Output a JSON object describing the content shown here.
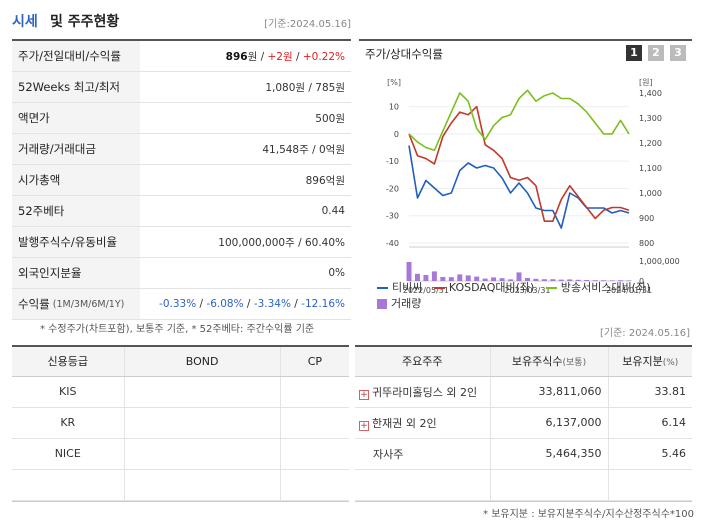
{
  "header": {
    "title_a": "시세",
    "title_b": "및 주주현황",
    "date": "[기준:2024.05.16]"
  },
  "market": {
    "rows": [
      {
        "label": "주가/전일대비/수익률"
      },
      {
        "label": "52Weeks 최고/최저",
        "value": "1,080원 / 785원"
      },
      {
        "label": "액면가",
        "value": "500원"
      },
      {
        "label": "거래량/거래대금",
        "value": "41,548주 / 0억원"
      },
      {
        "label": "시가총액",
        "value": "896억원"
      },
      {
        "label": "52주베타",
        "value": "0.44"
      },
      {
        "label": "발행주식수/유동비율",
        "value": "100,000,000주 / 60.40%"
      },
      {
        "label": "외국인지분율",
        "value": "0%"
      },
      {
        "label": "수익률",
        "sub": "(1M/3M/6M/1Y)"
      }
    ],
    "price": "896",
    "price_unit": "원 /",
    "change": "+2원",
    "sep": "/",
    "change_pct": "+0.22%",
    "returns": [
      "-0.33%",
      "-6.08%",
      "-3.34%",
      "-12.16%"
    ]
  },
  "note": "* 수정주가(차트포함), 보통주 기준, * 52주베타: 주간수익률 기준",
  "date2": "[기준: 2024.05.16]",
  "chart_panel": {
    "title": "주가/상대수익률",
    "tabs": [
      "1",
      "2",
      "3"
    ],
    "legend": [
      {
        "label": "티비씨",
        "color": "#1f5fbf"
      },
      {
        "label": "KOSDAQ대비(좌)",
        "color": "#c0392b"
      },
      {
        "label": "방송서비스대비(좌)",
        "color": "#7cbf1e"
      },
      {
        "label": "거래량",
        "color": "#a779d6"
      }
    ]
  },
  "chart_data": {
    "type": "line",
    "left_axis": {
      "unit": "[%]",
      "ticks": [
        10,
        0,
        -10,
        -20,
        -30,
        -40
      ],
      "ylim": [
        -40,
        15
      ]
    },
    "right_axis": {
      "unit": "[원]",
      "ticks": [
        "1,400",
        "1,300",
        "1,200",
        "1,100",
        "1,000",
        "900",
        "800"
      ],
      "ylim": [
        800,
        1400
      ]
    },
    "volume_axis": {
      "ticks": [
        "1,000,000",
        "0"
      ],
      "ylim": [
        0,
        1000000
      ]
    },
    "x_ticks": [
      "2022/05/31",
      "2023/03/31",
      "2024/01/31"
    ],
    "x_tick_index": [
      2,
      14,
      26
    ],
    "series": [
      {
        "name": "티비씨",
        "axis": "right",
        "color": "#1f5fbf",
        "values": [
          1190,
          980,
          1050,
          1020,
          990,
          1000,
          1090,
          1120,
          1100,
          1110,
          1100,
          1060,
          1000,
          1040,
          1000,
          940,
          930,
          930,
          860,
          1000,
          980,
          940,
          940,
          940,
          920,
          930,
          920
        ]
      },
      {
        "name": "KOSDAQ대비(좌)",
        "axis": "left",
        "color": "#c0392b",
        "values": [
          0,
          -8,
          -9,
          -11,
          -1,
          4,
          8,
          7,
          10,
          -4,
          -6,
          -9,
          -16,
          -17,
          -16,
          -19,
          -32,
          -32,
          -24,
          -19,
          -23,
          -27,
          -31,
          -28,
          -27,
          -27,
          -28
        ]
      },
      {
        "name": "방송서비스대비(좌)",
        "axis": "left",
        "color": "#7cbf1e",
        "values": [
          0,
          -3,
          -5,
          -6,
          1,
          8,
          15,
          12,
          2,
          -2,
          3,
          6,
          7,
          13,
          16,
          12,
          14,
          15,
          13,
          13,
          11,
          8,
          4,
          0,
          0,
          5,
          0
        ]
      },
      {
        "name": "거래량",
        "axis": "volume",
        "color": "#a779d6",
        "values": [
          950000,
          360000,
          300000,
          480000,
          200000,
          190000,
          330000,
          280000,
          220000,
          120000,
          180000,
          140000,
          80000,
          430000,
          150000,
          110000,
          90000,
          90000,
          70000,
          80000,
          60000,
          50000,
          40000,
          40000,
          30000,
          40000,
          30000
        ]
      }
    ]
  },
  "credit": {
    "headers": [
      "신용등급",
      "BOND",
      "CP"
    ],
    "rows": [
      [
        "KIS",
        "",
        ""
      ],
      [
        "KR",
        "",
        ""
      ],
      [
        "NICE",
        "",
        ""
      ],
      [
        "",
        "",
        ""
      ]
    ]
  },
  "holders": {
    "headers": {
      "name": "주요주주",
      "shares": "보유주식수",
      "shares_sub": "(보통)",
      "pct": "보유지분",
      "pct_sub": "(%)"
    },
    "rows": [
      {
        "name": "귀뚜라미홀딩스 외 2인",
        "shares": "33,811,060",
        "pct": "33.81",
        "expandable": "+"
      },
      {
        "name": "한재권 외 2인",
        "shares": "6,137,000",
        "pct": "6.14",
        "expandable": "+"
      },
      {
        "name": "자사주",
        "shares": "5,464,350",
        "pct": "5.46",
        "expandable": ""
      },
      {
        "name": "",
        "shares": "",
        "pct": "",
        "expandable": ""
      }
    ]
  },
  "note3": "* 보유지분 : 보유지분주식수/지수산정주식수*100"
}
